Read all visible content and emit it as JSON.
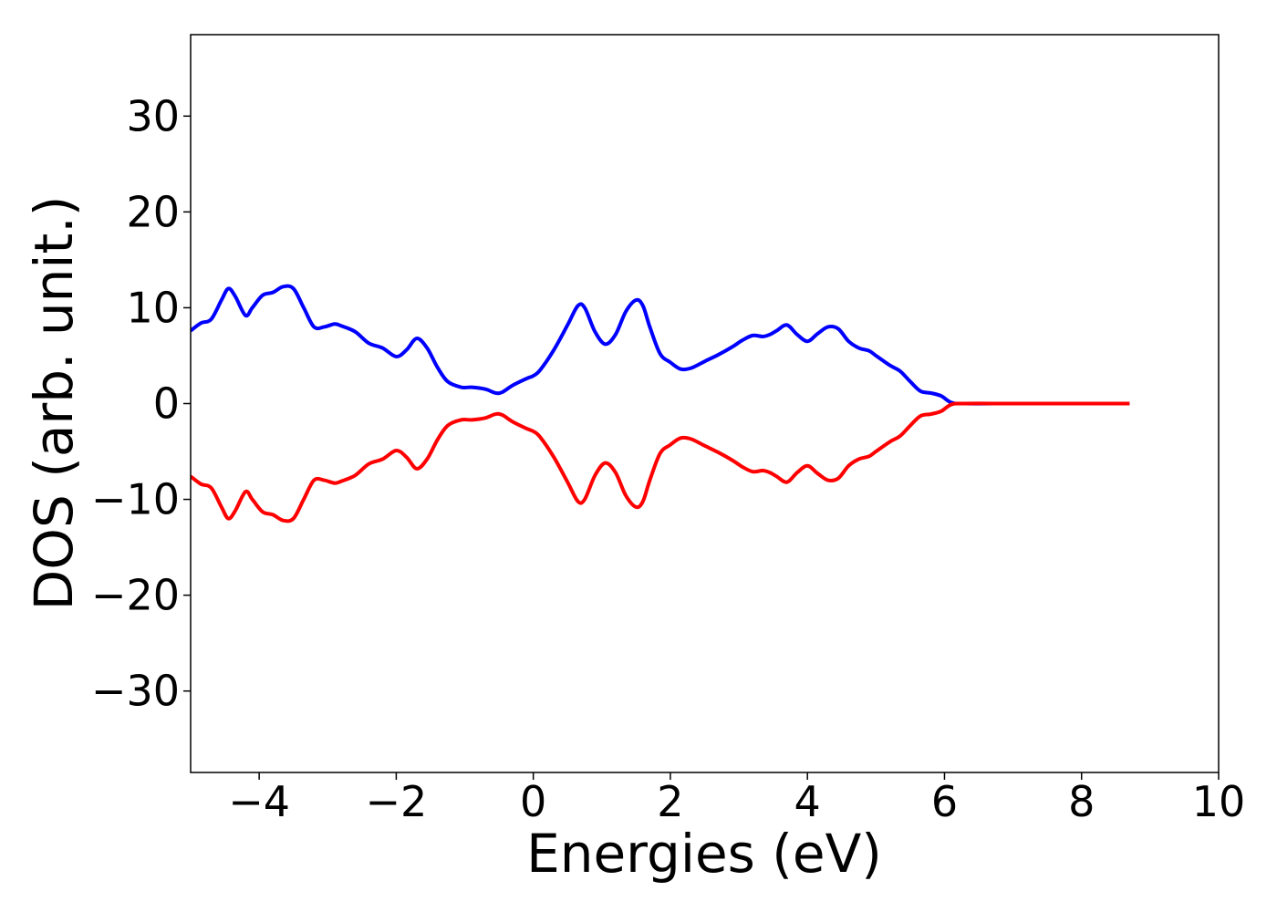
{
  "chart_data": {
    "type": "line",
    "title": "",
    "xlabel": "Energies (eV)",
    "ylabel": "DOS (arb. unit.)",
    "xlim": [
      -5,
      10
    ],
    "ylim": [
      -38.5,
      38.5
    ],
    "xticks": [
      -4,
      -2,
      0,
      2,
      4,
      6,
      8,
      10
    ],
    "yticks": [
      -30,
      -20,
      -10,
      0,
      10,
      20,
      30
    ],
    "xtick_labels": [
      "−4",
      "−2",
      "0",
      "2",
      "4",
      "6",
      "8",
      "10"
    ],
    "ytick_labels": [
      "−30",
      "−20",
      "−10",
      "0",
      "10",
      "20",
      "30"
    ],
    "grid": false,
    "legend": "none",
    "series": [
      {
        "color": "#0000ff",
        "x": [
          -5.0,
          -4.85,
          -4.7,
          -4.55,
          -4.45,
          -4.35,
          -4.2,
          -4.1,
          -3.95,
          -3.8,
          -3.65,
          -3.5,
          -3.35,
          -3.2,
          -3.05,
          -2.9,
          -2.8,
          -2.6,
          -2.4,
          -2.2,
          -2.0,
          -1.85,
          -1.7,
          -1.55,
          -1.4,
          -1.25,
          -1.05,
          -0.9,
          -0.7,
          -0.55,
          -0.45,
          -0.3,
          -0.1,
          0.0,
          0.1,
          0.3,
          0.5,
          0.65,
          0.75,
          0.9,
          1.05,
          1.2,
          1.35,
          1.5,
          1.6,
          1.7,
          1.85,
          2.0,
          2.15,
          2.3,
          2.5,
          2.7,
          2.9,
          3.05,
          3.2,
          3.35,
          3.45,
          3.55,
          3.7,
          3.85,
          4.0,
          4.15,
          4.3,
          4.45,
          4.6,
          4.75,
          4.9,
          5.0,
          5.2,
          5.35,
          5.5,
          5.65,
          5.8,
          5.95,
          6.1,
          6.3,
          7.0,
          8.0,
          8.7
        ],
        "y": [
          7.6,
          8.4,
          8.8,
          10.8,
          12.0,
          11.2,
          9.2,
          10.0,
          11.3,
          11.6,
          12.2,
          12.0,
          10.0,
          8.0,
          8.0,
          8.3,
          8.1,
          7.5,
          6.3,
          5.8,
          4.9,
          5.6,
          6.8,
          5.8,
          3.8,
          2.3,
          1.7,
          1.7,
          1.5,
          1.1,
          1.2,
          1.9,
          2.6,
          2.9,
          3.5,
          5.6,
          8.2,
          10.2,
          10.0,
          7.5,
          6.2,
          7.2,
          9.6,
          10.8,
          10.2,
          8.0,
          5.2,
          4.3,
          3.6,
          3.7,
          4.4,
          5.1,
          5.9,
          6.6,
          7.1,
          7.0,
          7.2,
          7.6,
          8.2,
          7.2,
          6.5,
          7.3,
          8.0,
          7.8,
          6.5,
          5.8,
          5.5,
          5.0,
          4.0,
          3.4,
          2.3,
          1.3,
          1.1,
          0.8,
          0.1,
          0.0,
          0.0,
          0.0,
          0.0
        ]
      },
      {
        "color": "#ff0000",
        "x": [
          -5.0,
          -4.85,
          -4.7,
          -4.55,
          -4.45,
          -4.35,
          -4.2,
          -4.1,
          -3.95,
          -3.8,
          -3.65,
          -3.5,
          -3.35,
          -3.2,
          -3.05,
          -2.9,
          -2.8,
          -2.6,
          -2.4,
          -2.2,
          -2.0,
          -1.85,
          -1.7,
          -1.55,
          -1.4,
          -1.25,
          -1.05,
          -0.9,
          -0.7,
          -0.55,
          -0.45,
          -0.3,
          -0.1,
          0.0,
          0.1,
          0.3,
          0.5,
          0.65,
          0.75,
          0.9,
          1.05,
          1.2,
          1.35,
          1.5,
          1.6,
          1.7,
          1.85,
          2.0,
          2.15,
          2.3,
          2.5,
          2.7,
          2.9,
          3.05,
          3.2,
          3.35,
          3.45,
          3.55,
          3.7,
          3.85,
          4.0,
          4.15,
          4.3,
          4.45,
          4.6,
          4.75,
          4.9,
          5.0,
          5.2,
          5.35,
          5.5,
          5.65,
          5.8,
          5.95,
          6.1,
          6.3,
          7.0,
          8.0,
          8.7
        ],
        "y": [
          -7.6,
          -8.4,
          -8.8,
          -10.8,
          -12.0,
          -11.2,
          -9.2,
          -10.0,
          -11.3,
          -11.6,
          -12.2,
          -12.0,
          -10.0,
          -8.0,
          -8.0,
          -8.3,
          -8.1,
          -7.5,
          -6.3,
          -5.8,
          -4.9,
          -5.6,
          -6.8,
          -5.8,
          -3.8,
          -2.3,
          -1.7,
          -1.7,
          -1.5,
          -1.1,
          -1.2,
          -1.9,
          -2.6,
          -2.9,
          -3.5,
          -5.6,
          -8.2,
          -10.2,
          -10.0,
          -7.5,
          -6.2,
          -7.2,
          -9.6,
          -10.8,
          -10.2,
          -8.0,
          -5.2,
          -4.3,
          -3.6,
          -3.7,
          -4.4,
          -5.1,
          -5.9,
          -6.6,
          -7.1,
          -7.0,
          -7.2,
          -7.6,
          -8.2,
          -7.2,
          -6.5,
          -7.3,
          -8.0,
          -7.8,
          -6.5,
          -5.8,
          -5.5,
          -5.0,
          -4.0,
          -3.4,
          -2.3,
          -1.3,
          -1.1,
          -0.8,
          -0.1,
          0.0,
          0.0,
          0.0,
          0.0
        ]
      }
    ]
  }
}
